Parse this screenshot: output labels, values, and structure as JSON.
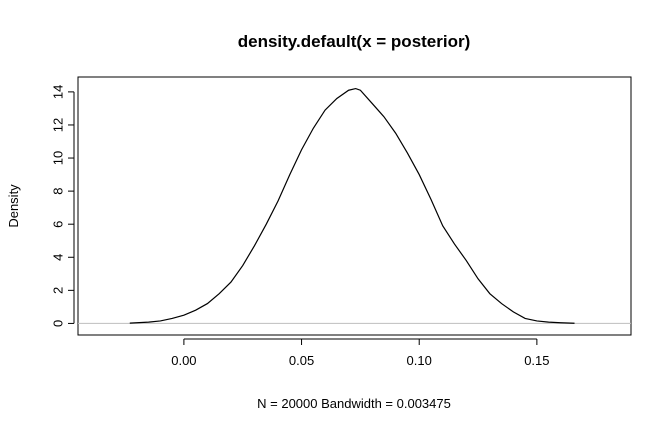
{
  "chart_data": {
    "type": "line",
    "title": "density.default(x = posterior)",
    "xlabel": "N = 20000   Bandwidth = 0.003475",
    "ylabel": "Density",
    "xlim": [
      -0.045,
      0.19
    ],
    "ylim": [
      -0.7,
      14.9
    ],
    "x_ticks": [
      0.0,
      0.05,
      0.1,
      0.15
    ],
    "x_tick_labels": [
      "0.00",
      "0.05",
      "0.10",
      "0.15"
    ],
    "y_ticks": [
      0,
      2,
      4,
      6,
      8,
      10,
      12,
      14
    ],
    "y_tick_labels": [
      "0",
      "2",
      "4",
      "6",
      "8",
      "10",
      "12",
      "14"
    ],
    "zero_line": true,
    "grid": false,
    "colors": {
      "line": "#000000",
      "zero_line": "#bebebe",
      "frame": "#000000"
    },
    "series": [
      {
        "x": [
          -0.023,
          -0.015,
          -0.01,
          -0.005,
          0.0,
          0.005,
          0.01,
          0.015,
          0.02,
          0.025,
          0.03,
          0.035,
          0.04,
          0.045,
          0.05,
          0.055,
          0.06,
          0.065,
          0.07,
          0.073,
          0.075,
          0.08,
          0.085,
          0.09,
          0.095,
          0.1,
          0.105,
          0.11,
          0.115,
          0.12,
          0.125,
          0.13,
          0.135,
          0.14,
          0.145,
          0.15,
          0.155,
          0.16,
          0.166
        ],
        "y": [
          0.02,
          0.08,
          0.15,
          0.3,
          0.5,
          0.8,
          1.2,
          1.8,
          2.5,
          3.5,
          4.7,
          6.0,
          7.4,
          9.0,
          10.5,
          11.8,
          12.9,
          13.6,
          14.1,
          14.2,
          14.1,
          13.3,
          12.5,
          11.5,
          10.3,
          9.0,
          7.5,
          5.9,
          4.8,
          3.8,
          2.7,
          1.8,
          1.2,
          0.7,
          0.3,
          0.15,
          0.08,
          0.04,
          0.01
        ]
      }
    ]
  }
}
